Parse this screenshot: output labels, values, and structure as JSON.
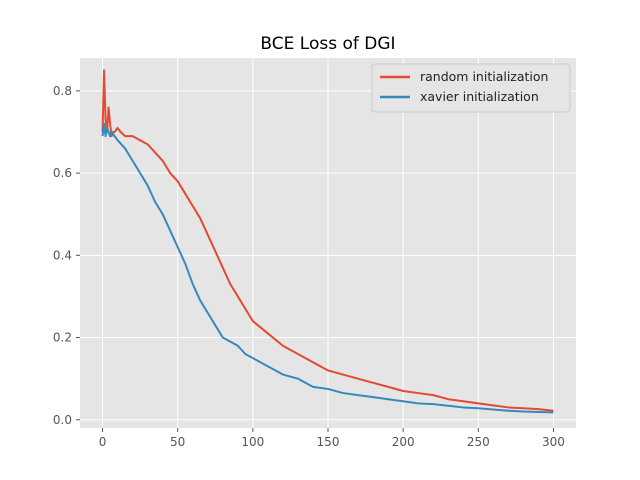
{
  "chart_data": {
    "type": "line",
    "title": "BCE Loss of DGI",
    "xlabel": "",
    "ylabel": "",
    "xlim": [
      -15,
      315
    ],
    "ylim": [
      -0.02,
      0.88
    ],
    "xticks": [
      0,
      50,
      100,
      150,
      200,
      250,
      300
    ],
    "yticks": [
      0.0,
      0.2,
      0.4,
      0.6,
      0.8
    ],
    "grid": true,
    "legend": "top-right",
    "series": [
      {
        "name": "random initialization",
        "color": "#E24A33",
        "x": [
          0,
          1,
          2,
          3,
          4,
          5,
          6,
          7,
          8,
          10,
          12,
          15,
          18,
          20,
          25,
          30,
          35,
          40,
          45,
          50,
          55,
          60,
          65,
          70,
          75,
          80,
          85,
          90,
          95,
          100,
          110,
          120,
          130,
          140,
          150,
          160,
          170,
          180,
          190,
          200,
          210,
          220,
          230,
          240,
          250,
          260,
          270,
          280,
          290,
          300
        ],
        "y": [
          0.7,
          0.85,
          0.73,
          0.7,
          0.76,
          0.72,
          0.69,
          0.7,
          0.7,
          0.71,
          0.7,
          0.69,
          0.69,
          0.69,
          0.68,
          0.67,
          0.65,
          0.63,
          0.6,
          0.58,
          0.55,
          0.52,
          0.49,
          0.45,
          0.41,
          0.37,
          0.33,
          0.3,
          0.27,
          0.24,
          0.21,
          0.18,
          0.16,
          0.14,
          0.12,
          0.11,
          0.1,
          0.09,
          0.08,
          0.07,
          0.065,
          0.06,
          0.05,
          0.045,
          0.04,
          0.035,
          0.03,
          0.028,
          0.026,
          0.022
        ]
      },
      {
        "name": "xavier initialization",
        "color": "#348ABD",
        "x": [
          0,
          1,
          2,
          3,
          4,
          5,
          6,
          8,
          10,
          15,
          20,
          25,
          30,
          35,
          40,
          45,
          50,
          55,
          60,
          65,
          70,
          75,
          80,
          85,
          90,
          95,
          100,
          110,
          120,
          130,
          140,
          150,
          160,
          170,
          180,
          190,
          200,
          210,
          220,
          230,
          240,
          250,
          260,
          270,
          280,
          290,
          300
        ],
        "y": [
          0.69,
          0.72,
          0.69,
          0.71,
          0.7,
          0.69,
          0.7,
          0.69,
          0.68,
          0.66,
          0.63,
          0.6,
          0.57,
          0.53,
          0.5,
          0.46,
          0.42,
          0.38,
          0.33,
          0.29,
          0.26,
          0.23,
          0.2,
          0.19,
          0.18,
          0.16,
          0.15,
          0.13,
          0.11,
          0.1,
          0.08,
          0.075,
          0.065,
          0.06,
          0.055,
          0.05,
          0.045,
          0.04,
          0.038,
          0.034,
          0.03,
          0.028,
          0.025,
          0.022,
          0.02,
          0.019,
          0.018
        ]
      }
    ]
  }
}
